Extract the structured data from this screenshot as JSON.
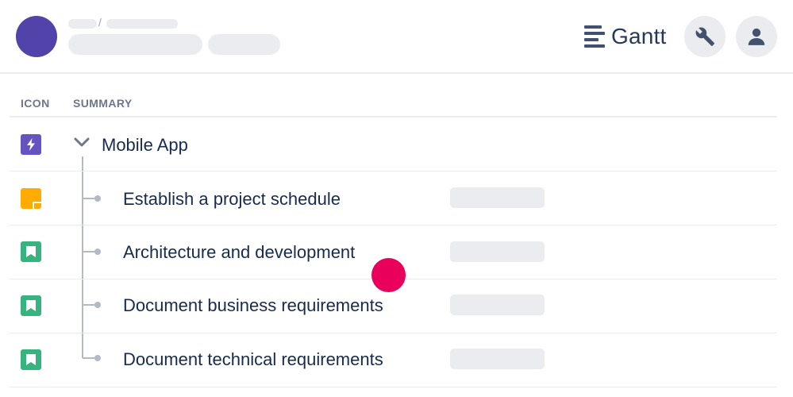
{
  "header": {
    "breadcrumb_separator": "/",
    "brand_label": "Gantt",
    "brand_icon": "gantt-lines-icon",
    "settings_icon": "wrench-icon",
    "profile_icon": "user-icon"
  },
  "table": {
    "columns": [
      "ICON",
      "SUMMARY"
    ],
    "parent": {
      "label": "Mobile App",
      "icon": "epic-lightning-icon",
      "expanded": true
    },
    "children": [
      {
        "label": "Establish a project schedule",
        "icon": "task-icon"
      },
      {
        "label": "Architecture and development",
        "icon": "story-bookmark-icon"
      },
      {
        "label": "Document business requirements",
        "icon": "story-bookmark-icon"
      },
      {
        "label": "Document technical requirements",
        "icon": "story-bookmark-icon"
      }
    ]
  },
  "colors": {
    "epic": "#6554c0",
    "task": "#ffab00",
    "story": "#36b37e",
    "cursor": "#e8005a",
    "avatar": "#5243aa"
  }
}
